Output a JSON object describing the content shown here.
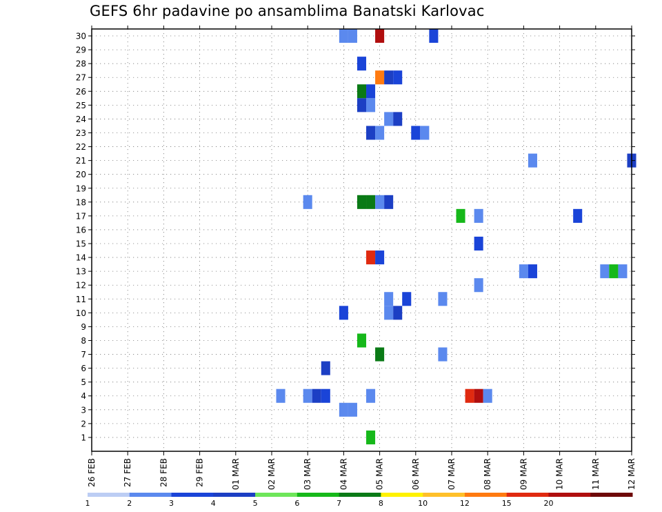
{
  "title": "GEFS 6hr padavine po ansamblima Banatski Karlovac",
  "chart_data": {
    "type": "heatmap",
    "title": "GEFS 6hr padavine po ansamblima Banatski Karlovac",
    "y_ticks": [
      "1",
      "2",
      "3",
      "4",
      "5",
      "6",
      "7",
      "8",
      "9",
      "10",
      "11",
      "12",
      "13",
      "14",
      "15",
      "16",
      "17",
      "18",
      "19",
      "20",
      "21",
      "22",
      "23",
      "24",
      "25",
      "26",
      "27",
      "28",
      "29",
      "30"
    ],
    "x_ticks": [
      "26 FEB",
      "27 FEB",
      "28 FEB",
      "29 FEB",
      "01 MAR",
      "02 MAR",
      "03 MAR",
      "04 MAR",
      "05 MAR",
      "06 MAR",
      "07 MAR",
      "08 MAR",
      "09 MAR",
      "10 MAR",
      "11 MAR",
      "12 MAR"
    ],
    "grid": true,
    "colorbar": {
      "ticks": [
        "1",
        "2",
        "3",
        "4",
        "5",
        "6",
        "7",
        "8",
        "10",
        "12",
        "15",
        "20"
      ],
      "colors": [
        "#bccdf4",
        "#5b89ee",
        "#1a44d8",
        "#1c3fc4",
        "#6ee65a",
        "#16b81a",
        "#0a7a16",
        "#fff200",
        "#ffc02a",
        "#ff7a10",
        "#e02a10",
        "#b00e0e",
        "#6e0808"
      ]
    },
    "cells": [
      {
        "x": 7.0,
        "y": 30,
        "v": 1.5
      },
      {
        "x": 7.25,
        "y": 30,
        "v": 1.5
      },
      {
        "x": 8.0,
        "y": 30,
        "v": 18.0
      },
      {
        "x": 9.5,
        "y": 30,
        "v": 2.5
      },
      {
        "x": 7.5,
        "y": 28,
        "v": 2.5
      },
      {
        "x": 8.0,
        "y": 27,
        "v": 11.0
      },
      {
        "x": 8.25,
        "y": 27,
        "v": 3.5
      },
      {
        "x": 8.5,
        "y": 27,
        "v": 2.5
      },
      {
        "x": 7.5,
        "y": 26,
        "v": 6.0
      },
      {
        "x": 7.75,
        "y": 26,
        "v": 2.5
      },
      {
        "x": 7.5,
        "y": 25,
        "v": 3.5
      },
      {
        "x": 7.75,
        "y": 25,
        "v": 1.5
      },
      {
        "x": 8.25,
        "y": 24,
        "v": 1.5
      },
      {
        "x": 8.5,
        "y": 24,
        "v": 3.5
      },
      {
        "x": 7.75,
        "y": 23,
        "v": 3.5
      },
      {
        "x": 8.0,
        "y": 23,
        "v": 1.5
      },
      {
        "x": 9.0,
        "y": 23,
        "v": 2.5
      },
      {
        "x": 9.25,
        "y": 23,
        "v": 1.5
      },
      {
        "x": 12.25,
        "y": 21,
        "v": 1.5
      },
      {
        "x": 15.0,
        "y": 21,
        "v": 3.5
      },
      {
        "x": 6.0,
        "y": 18,
        "v": 1.5
      },
      {
        "x": 7.5,
        "y": 18,
        "v": 6.0
      },
      {
        "x": 7.75,
        "y": 18,
        "v": 6.0
      },
      {
        "x": 8.0,
        "y": 18,
        "v": 1.5
      },
      {
        "x": 8.25,
        "y": 18,
        "v": 3.5
      },
      {
        "x": 10.25,
        "y": 17,
        "v": 5.5
      },
      {
        "x": 10.75,
        "y": 17,
        "v": 1.5
      },
      {
        "x": 13.5,
        "y": 17,
        "v": 2.5
      },
      {
        "x": 10.75,
        "y": 15,
        "v": 2.5
      },
      {
        "x": 7.75,
        "y": 14,
        "v": 13.0
      },
      {
        "x": 8.0,
        "y": 14,
        "v": 2.5
      },
      {
        "x": 12.0,
        "y": 13,
        "v": 1.5
      },
      {
        "x": 12.25,
        "y": 13,
        "v": 2.5
      },
      {
        "x": 14.25,
        "y": 13,
        "v": 1.5
      },
      {
        "x": 14.5,
        "y": 13,
        "v": 5.5
      },
      {
        "x": 14.75,
        "y": 13,
        "v": 1.5
      },
      {
        "x": 10.75,
        "y": 12,
        "v": 1.5
      },
      {
        "x": 8.25,
        "y": 11,
        "v": 1.5
      },
      {
        "x": 8.75,
        "y": 11,
        "v": 2.5
      },
      {
        "x": 9.75,
        "y": 11,
        "v": 1.5
      },
      {
        "x": 7.0,
        "y": 10,
        "v": 2.5
      },
      {
        "x": 8.25,
        "y": 10,
        "v": 1.5
      },
      {
        "x": 8.5,
        "y": 10,
        "v": 3.5
      },
      {
        "x": 7.5,
        "y": 8,
        "v": 5.5
      },
      {
        "x": 8.0,
        "y": 7,
        "v": 6.8
      },
      {
        "x": 9.75,
        "y": 7,
        "v": 1.5
      },
      {
        "x": 6.5,
        "y": 6,
        "v": 3.5
      },
      {
        "x": 5.25,
        "y": 4,
        "v": 1.5
      },
      {
        "x": 6.0,
        "y": 4,
        "v": 1.5
      },
      {
        "x": 6.25,
        "y": 4,
        "v": 3.5
      },
      {
        "x": 6.5,
        "y": 4,
        "v": 2.5
      },
      {
        "x": 7.75,
        "y": 4,
        "v": 1.5
      },
      {
        "x": 10.5,
        "y": 4,
        "v": 13.0
      },
      {
        "x": 10.75,
        "y": 4,
        "v": 17.0
      },
      {
        "x": 11.0,
        "y": 4,
        "v": 1.5
      },
      {
        "x": 7.0,
        "y": 3,
        "v": 1.5
      },
      {
        "x": 7.25,
        "y": 3,
        "v": 1.5
      },
      {
        "x": 7.75,
        "y": 1,
        "v": 5.5
      }
    ]
  }
}
